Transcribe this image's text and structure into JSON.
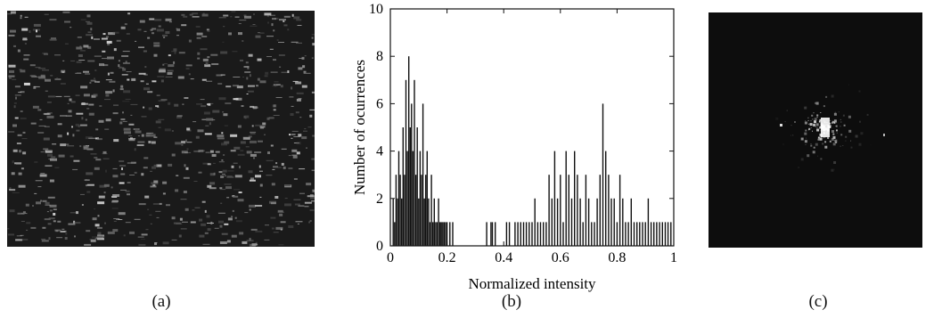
{
  "captions": {
    "a": "(a)",
    "b": "(b)",
    "c": "(c)"
  },
  "image_a": {
    "kind": "noisy speckle texture",
    "background": "#1a1a1a"
  },
  "image_c": {
    "kind": "central bright speckle spot",
    "background": "#0d0d0d"
  },
  "chart_data": {
    "type": "bar",
    "xlabel": "Normalized intensity",
    "ylabel": "Number of ocurrences",
    "xlim": [
      0,
      1
    ],
    "ylim": [
      0,
      10
    ],
    "xticks": [
      "0",
      "0.2",
      "0.4",
      "0.6",
      "0.8",
      "1"
    ],
    "yticks": [
      "0",
      "2",
      "4",
      "6",
      "8",
      "10"
    ],
    "grid": false,
    "x": [
      0.01,
      0.015,
      0.02,
      0.025,
      0.03,
      0.035,
      0.04,
      0.045,
      0.05,
      0.055,
      0.06,
      0.065,
      0.07,
      0.075,
      0.08,
      0.085,
      0.09,
      0.095,
      0.1,
      0.105,
      0.11,
      0.115,
      0.12,
      0.125,
      0.13,
      0.135,
      0.14,
      0.145,
      0.15,
      0.155,
      0.16,
      0.165,
      0.17,
      0.175,
      0.18,
      0.185,
      0.19,
      0.195,
      0.2,
      0.21,
      0.22,
      0.34,
      0.355,
      0.36,
      0.37,
      0.41,
      0.42,
      0.44,
      0.45,
      0.46,
      0.47,
      0.48,
      0.49,
      0.5,
      0.51,
      0.52,
      0.53,
      0.54,
      0.55,
      0.56,
      0.57,
      0.58,
      0.59,
      0.6,
      0.61,
      0.62,
      0.63,
      0.64,
      0.65,
      0.66,
      0.67,
      0.68,
      0.69,
      0.7,
      0.71,
      0.72,
      0.73,
      0.74,
      0.75,
      0.76,
      0.77,
      0.78,
      0.79,
      0.8,
      0.81,
      0.82,
      0.83,
      0.84,
      0.85,
      0.86,
      0.87,
      0.88,
      0.89,
      0.9,
      0.91,
      0.92,
      0.93,
      0.94,
      0.95,
      0.96,
      0.97,
      0.98,
      0.99
    ],
    "values": [
      2,
      1,
      3,
      2,
      4,
      3,
      2,
      5,
      3,
      7,
      4,
      8,
      5,
      6,
      4,
      7,
      3,
      5,
      2,
      4,
      3,
      6,
      2,
      3,
      4,
      2,
      1,
      3,
      1,
      2,
      1,
      1,
      2,
      1,
      1,
      1,
      1,
      1,
      1,
      1,
      1,
      1,
      1,
      1,
      1,
      1,
      1,
      1,
      1,
      1,
      1,
      1,
      1,
      1,
      2,
      1,
      1,
      1,
      1,
      3,
      2,
      4,
      2,
      3,
      1,
      4,
      3,
      2,
      4,
      3,
      2,
      1,
      3,
      2,
      1,
      1,
      2,
      3,
      6,
      4,
      3,
      2,
      2,
      1,
      3,
      2,
      1,
      1,
      2,
      1,
      1,
      1,
      1,
      1,
      2,
      1,
      1,
      1,
      1,
      1,
      1,
      1,
      1
    ]
  }
}
